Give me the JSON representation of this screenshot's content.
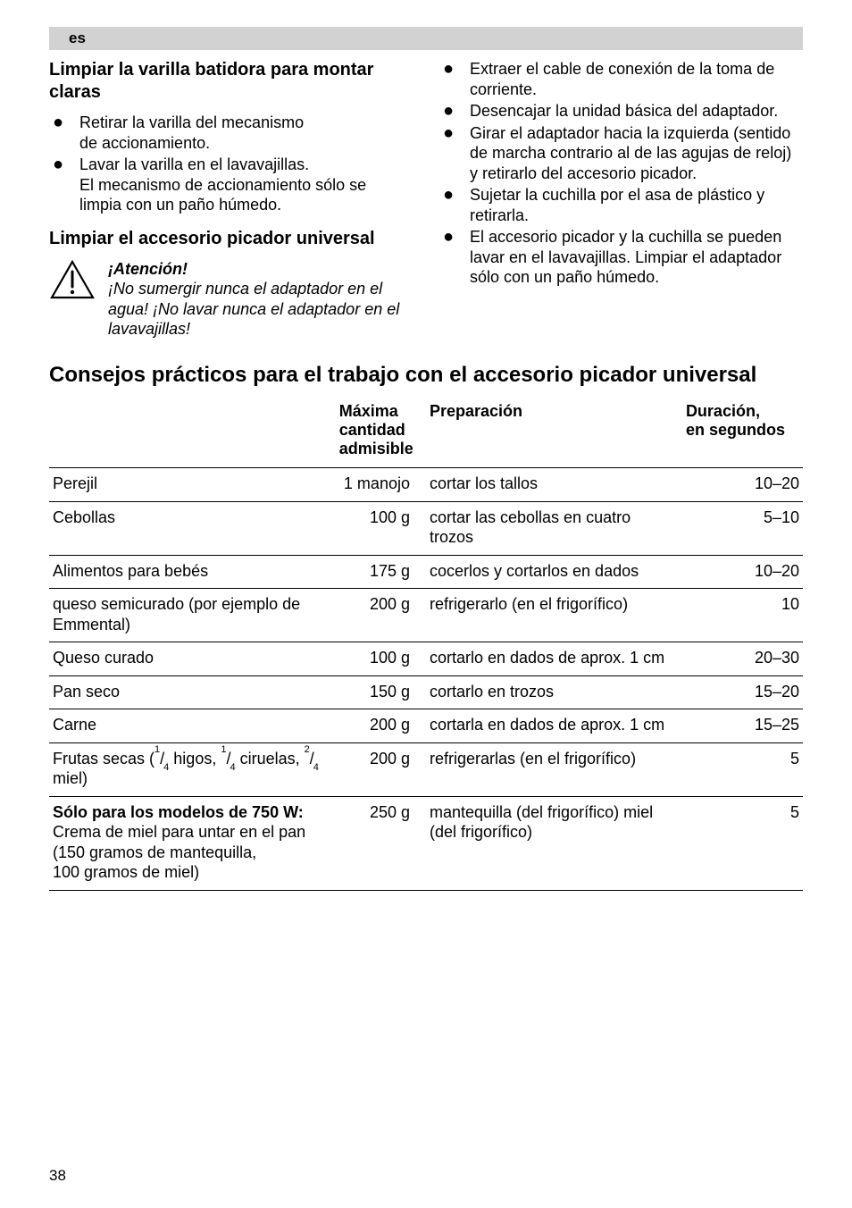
{
  "lang_code": "es",
  "left": {
    "h1": "Limpiar la varilla batidora para montar claras",
    "list1": [
      "Retirar la varilla del mecanismo de accionamiento.",
      "Lavar la varilla en el lavavajillas. El mecanismo de accionamiento sólo se limpia con un paño húmedo."
    ],
    "h2": "Limpiar el accesorio picador universal",
    "warn_title": "¡Atención!",
    "warn_body": "¡No sumergir nunca el adaptador en el agua! ¡No lavar nunca el adaptador en el lavavajillas!"
  },
  "right": {
    "list": [
      "Extraer el cable de conexión de la toma de corriente.",
      "Desencajar la unidad básica del adaptador.",
      "Girar el adaptador hacia la izquierda (sentido de marcha contrario al de las agujas de reloj) y retirarlo del accesorio picador.",
      "Sujetar la cuchilla por el asa de plástico y retirarla.",
      "El accesorio picador y la cuchilla se pueden lavar en el lavavajillas. Limpiar el adaptador sólo con un paño húmedo."
    ]
  },
  "section_title": "Consejos prácticos para el trabajo con el accesorio picador universal",
  "table": {
    "headers": {
      "item": "",
      "qty": "Máxima cantidad admisible",
      "prep": "Preparación",
      "dur": "Duración, en segundos"
    },
    "rows": [
      {
        "item": "Perejil",
        "qty": "1 manojo",
        "prep": "cortar los tallos",
        "dur": "10–20"
      },
      {
        "item": "Cebollas",
        "qty": "100 g",
        "prep": "cortar las cebollas en cuatro trozos",
        "dur": "5–10"
      },
      {
        "item": "Alimentos para bebés",
        "qty": "175 g",
        "prep": "cocerlos y cortarlos en dados",
        "dur": "10–20"
      },
      {
        "item": "queso semicurado (por ejemplo de Emmental)",
        "qty": "200 g",
        "prep": "refrigerarlo (en el frigorífico)",
        "dur": "10"
      },
      {
        "item": "Queso curado",
        "qty": "100 g",
        "prep": "cortarlo en dados de aprox. 1 cm",
        "dur": "20–30"
      },
      {
        "item": "Pan seco",
        "qty": "150 g",
        "prep": "cortarlo en trozos",
        "dur": "15–20"
      },
      {
        "item": "Carne",
        "qty": "200 g",
        "prep": "cortarla en dados de aprox. 1 cm",
        "dur": "15–25"
      },
      {
        "item_html": "Frutas secas (<span class=\"frac\"><sup>1</sup>/<sub>4</sub></span> higos, <span class=\"frac\"><sup>1</sup>/<sub>4</sub></span> ciruelas, <span class=\"frac\"><sup>2</sup>/<sub>4</sub></span> miel)",
        "qty": "200 g",
        "prep": "refrigerarlas (en el frigorífico)",
        "dur": "5"
      },
      {
        "item_html": "<b>Sólo para los modelos de 750 W:</b><br>Crema de miel para untar en el pan (150 gramos de mantequilla, 100 gramos de miel)",
        "qty": "250 g",
        "prep": "mantequilla (del frigorífico) miel (del frigorífico)",
        "dur": "5"
      }
    ]
  },
  "page_number": "38"
}
